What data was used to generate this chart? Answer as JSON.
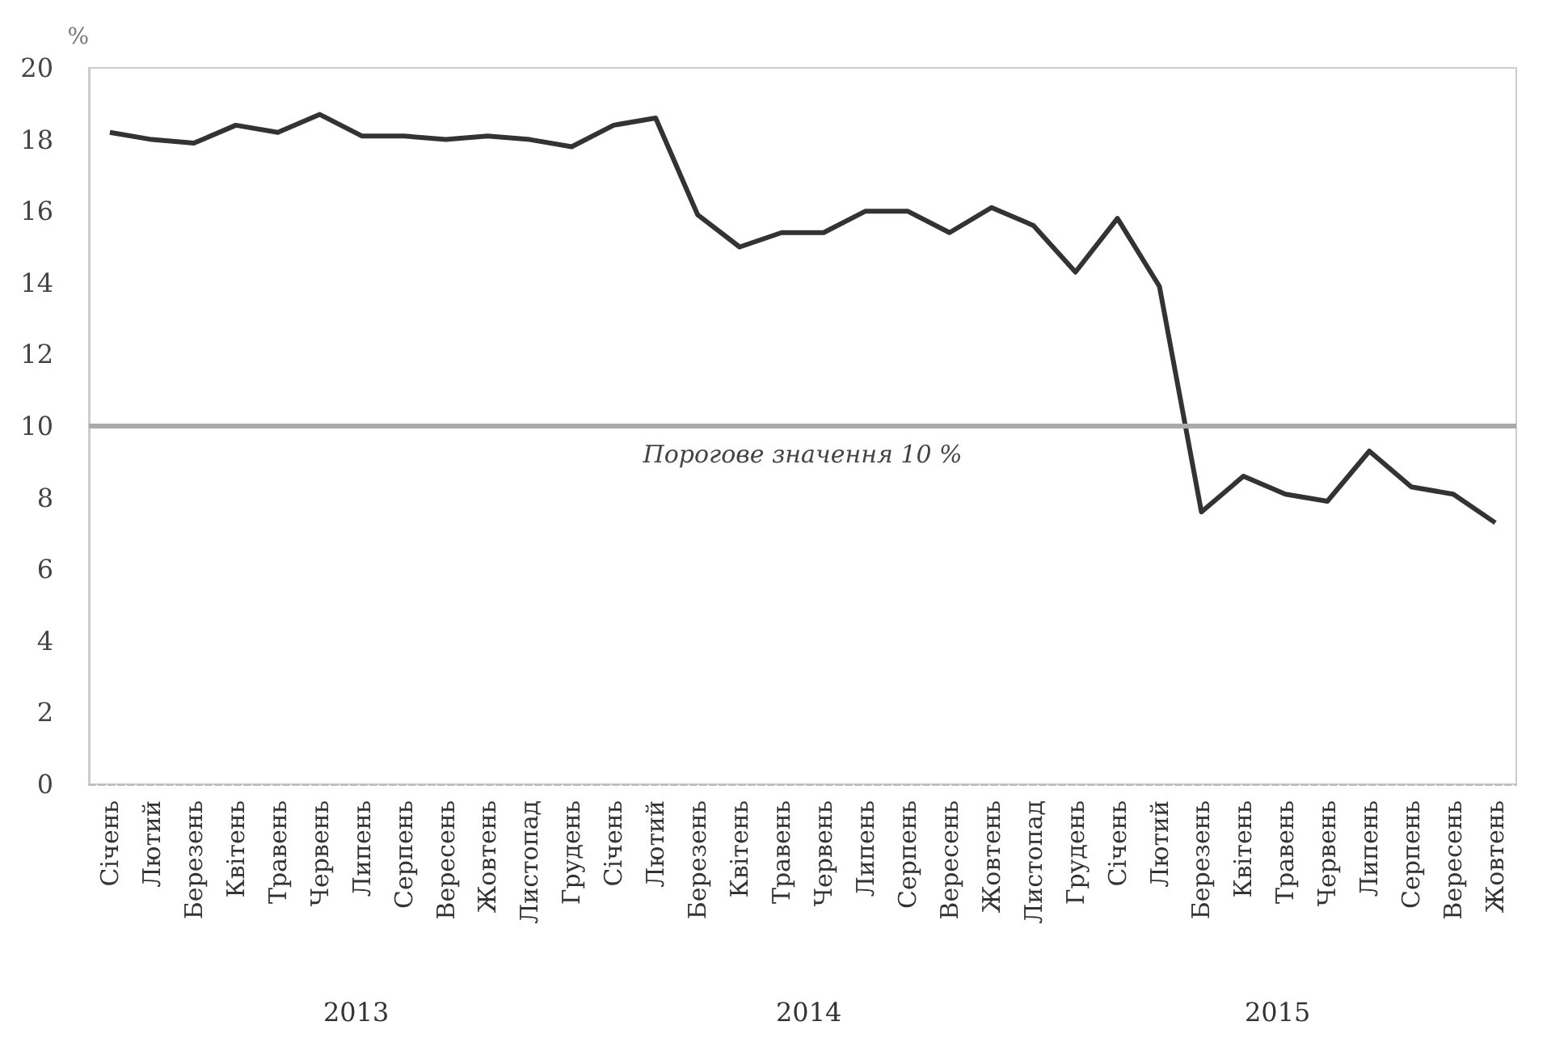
{
  "chart_data": {
    "type": "line",
    "ylabel": "%",
    "categories": [
      "Січень",
      "Лютий",
      "Березень",
      "Квітень",
      "Травень",
      "Червень",
      "Липень",
      "Серпень",
      "Вересень",
      "Жовтень",
      "Листопад",
      "Грудень",
      "Січень",
      "Лютий",
      "Березень",
      "Квітень",
      "Травень",
      "Червень",
      "Липень",
      "Серпень",
      "Вересень",
      "Жовтень",
      "Листопад",
      "Грудень",
      "Січень",
      "Лютий",
      "Березень",
      "Квітень",
      "Травень",
      "Червень",
      "Липень",
      "Серпень",
      "Вересень",
      "Жовтень"
    ],
    "series": [
      {
        "color": "#333333",
        "values": [
          18.2,
          18.0,
          17.9,
          18.4,
          18.2,
          18.7,
          18.1,
          18.1,
          18.0,
          18.1,
          18.0,
          17.8,
          18.4,
          18.6,
          15.9,
          15.0,
          15.4,
          15.4,
          16.0,
          16.0,
          15.4,
          16.1,
          15.6,
          14.3,
          15.8,
          13.9,
          7.6,
          8.6,
          8.1,
          7.9,
          9.3,
          8.3,
          8.1,
          7.3
        ]
      }
    ],
    "ylim": [
      0,
      20
    ],
    "yticks": [
      0,
      2,
      4,
      6,
      8,
      10,
      12,
      14,
      16,
      18,
      20
    ],
    "ref_lines": [
      {
        "axis": "y",
        "value": 10,
        "label": "Порогове значення 10 %",
        "color": "#aaaaaa"
      }
    ],
    "annotations": [
      "2013",
      "2014",
      "2015"
    ],
    "grid": false,
    "marker": "none",
    "line_style": "solid"
  }
}
